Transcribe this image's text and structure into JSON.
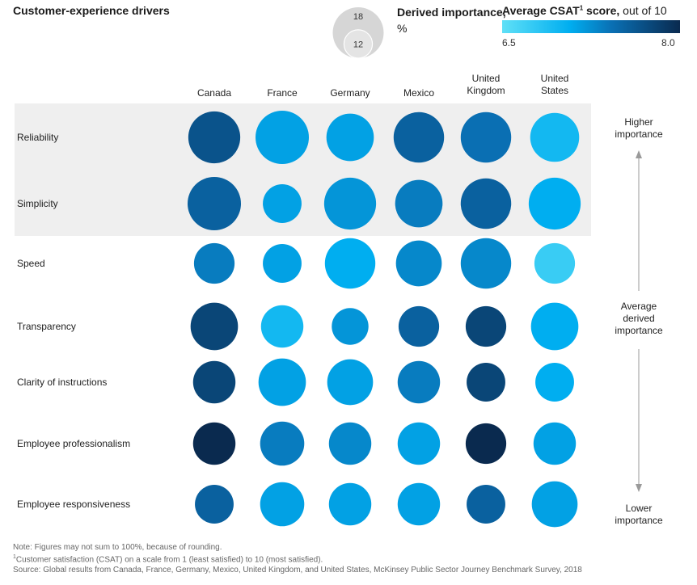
{
  "chart_data": {
    "type": "bubble-matrix",
    "title": "Customer-experience drivers",
    "columns": [
      "Canada",
      "France",
      "Germany",
      "Mexico",
      "United Kingdom",
      "United States"
    ],
    "rows": [
      "Reliability",
      "Simplicity",
      "Speed",
      "Transparency",
      "Clarity of instructions",
      "Employee professionalism",
      "Employee responsiveness"
    ],
    "highlighted_rows": [
      "Reliability",
      "Simplicity"
    ],
    "size_legend": {
      "label_bold": "Derived importance,",
      "label_unit": "%",
      "values": [
        18,
        12
      ]
    },
    "color_legend": {
      "label_bold": "Average CSAT",
      "label_sup": "1",
      "label_bold_tail": " score,",
      "label_rest": " out of 10",
      "min": "6.5",
      "max": "8.0",
      "colors": [
        "#5fe0f7",
        "#00aef0",
        "#0a6fb3",
        "#0a2a4f"
      ]
    },
    "importance": [
      [
        18,
        19,
        15,
        17,
        17,
        16
      ],
      [
        19,
        10,
        18,
        15,
        17,
        18
      ],
      [
        11,
        10,
        17,
        14,
        17,
        11
      ],
      [
        15,
        12,
        9,
        11,
        11,
        15
      ],
      [
        12,
        15,
        14,
        12,
        10,
        10
      ],
      [
        12,
        13,
        12,
        12,
        11,
        12
      ],
      [
        10,
        13,
        12,
        12,
        10,
        14
      ]
    ],
    "csat": [
      [
        7.7,
        7.1,
        7.1,
        7.6,
        7.5,
        6.9
      ],
      [
        7.6,
        7.1,
        7.2,
        7.4,
        7.6,
        7.0
      ],
      [
        7.4,
        7.1,
        7.0,
        7.3,
        7.3,
        6.7
      ],
      [
        7.8,
        6.9,
        7.2,
        7.6,
        7.8,
        7.0
      ],
      [
        7.8,
        7.1,
        7.1,
        7.4,
        7.8,
        7.0
      ],
      [
        8.0,
        7.4,
        7.3,
        7.1,
        8.0,
        7.1
      ],
      [
        7.6,
        7.1,
        7.1,
        7.1,
        7.6,
        7.1
      ]
    ],
    "importance_axis": {
      "top": "Higher importance",
      "middle": "Average derived importance",
      "bottom": "Lower importance"
    }
  },
  "notes": {
    "note1": "Note: Figures may not sum to 100%, because of rounding.",
    "note2_sup": "1",
    "note2": "Customer satisfaction (CSAT) on a scale from 1 (least satisfied) to 10 (most satisfied).",
    "source": "Source: Global results from Canada, France, Germany, Mexico, United Kingdom, and United States, McKinsey Public Sector Journey Benchmark Survey, 2018"
  }
}
